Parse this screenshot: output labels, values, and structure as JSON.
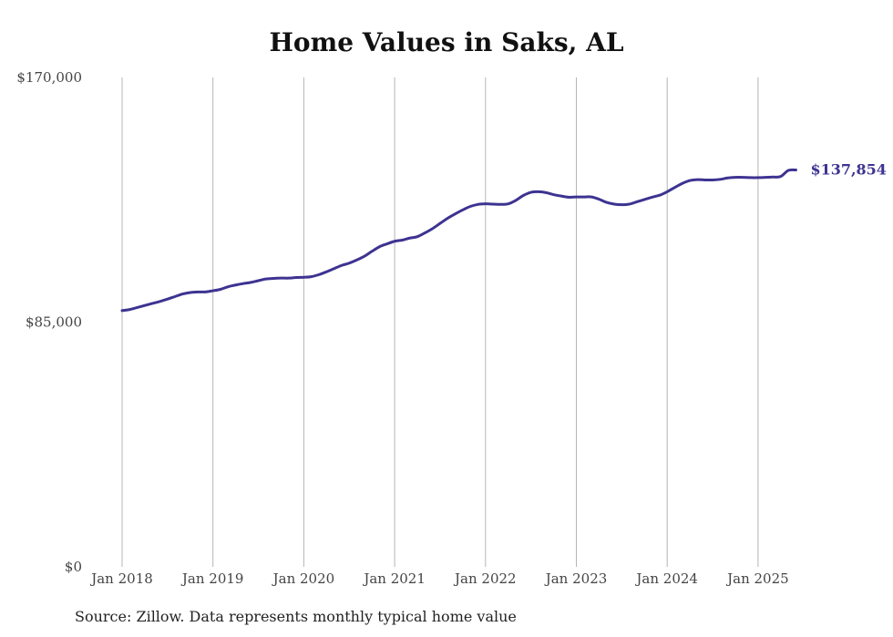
{
  "chart_data": {
    "type": "line",
    "title": "Home Values in Saks, AL",
    "xlabel": "",
    "ylabel": "",
    "ylim": [
      0,
      170000
    ],
    "y_ticks": [
      "$170,000",
      "$85,000",
      "$0"
    ],
    "y_tick_values": [
      170000,
      85000,
      0
    ],
    "x_ticks": [
      "Jan 2018",
      "Jan 2019",
      "Jan 2020",
      "Jan 2021",
      "Jan 2022",
      "Jan 2023",
      "Jan 2024",
      "Jan 2025"
    ],
    "x_tick_values": [
      "2018-01",
      "2019-01",
      "2020-01",
      "2021-01",
      "2022-01",
      "2023-01",
      "2024-01",
      "2025-01"
    ],
    "grid": "vertical at year marks",
    "line_color": "#3d3391",
    "end_label": "$137,854",
    "series": [
      {
        "x": [
          "2018-01",
          "2018-02",
          "2018-03",
          "2018-04",
          "2018-05",
          "2018-06",
          "2018-07",
          "2018-08",
          "2018-09",
          "2018-10",
          "2018-11",
          "2018-12",
          "2019-01",
          "2019-02",
          "2019-03",
          "2019-04",
          "2019-05",
          "2019-06",
          "2019-07",
          "2019-08",
          "2019-09",
          "2019-10",
          "2019-11",
          "2019-12",
          "2020-01",
          "2020-02",
          "2020-03",
          "2020-04",
          "2020-05",
          "2020-06",
          "2020-07",
          "2020-08",
          "2020-09",
          "2020-10",
          "2020-11",
          "2020-12",
          "2021-01",
          "2021-02",
          "2021-03",
          "2021-04",
          "2021-05",
          "2021-06",
          "2021-07",
          "2021-08",
          "2021-09",
          "2021-10",
          "2021-11",
          "2021-12",
          "2022-01",
          "2022-02",
          "2022-03",
          "2022-04",
          "2022-05",
          "2022-06",
          "2022-07",
          "2022-08",
          "2022-09",
          "2022-10",
          "2022-11",
          "2022-12",
          "2023-01",
          "2023-02",
          "2023-03",
          "2023-04",
          "2023-05",
          "2023-06",
          "2023-07",
          "2023-08",
          "2023-09",
          "2023-10",
          "2023-11",
          "2023-12",
          "2024-01",
          "2024-02",
          "2024-03",
          "2024-04",
          "2024-05",
          "2024-06",
          "2024-07",
          "2024-08",
          "2024-09",
          "2024-10",
          "2024-11",
          "2024-12",
          "2025-01",
          "2025-02",
          "2025-03",
          "2025-04",
          "2025-05",
          "2025-06"
        ],
        "values": [
          89000,
          89400,
          90100,
          90800,
          91500,
          92200,
          93000,
          93900,
          94800,
          95300,
          95500,
          95500,
          95900,
          96400,
          97300,
          97900,
          98400,
          98800,
          99400,
          100000,
          100200,
          100300,
          100300,
          100500,
          100600,
          100800,
          101500,
          102500,
          103600,
          104700,
          105500,
          106600,
          107900,
          109600,
          111200,
          112200,
          113100,
          113500,
          114200,
          114700,
          116000,
          117500,
          119300,
          121100,
          122600,
          124000,
          125200,
          125900,
          126100,
          126000,
          125900,
          126100,
          127300,
          129000,
          130100,
          130300,
          130000,
          129300,
          128800,
          128400,
          128500,
          128500,
          128500,
          127700,
          126600,
          126000,
          125800,
          126000,
          126800,
          127600,
          128400,
          129100,
          130300,
          131800,
          133200,
          134200,
          134500,
          134400,
          134400,
          134600,
          135100,
          135300,
          135300,
          135200,
          135200,
          135300,
          135400,
          135600,
          137700,
          137854
        ]
      }
    ]
  },
  "source_note": "Source: Zillow. Data represents monthly typical home value"
}
